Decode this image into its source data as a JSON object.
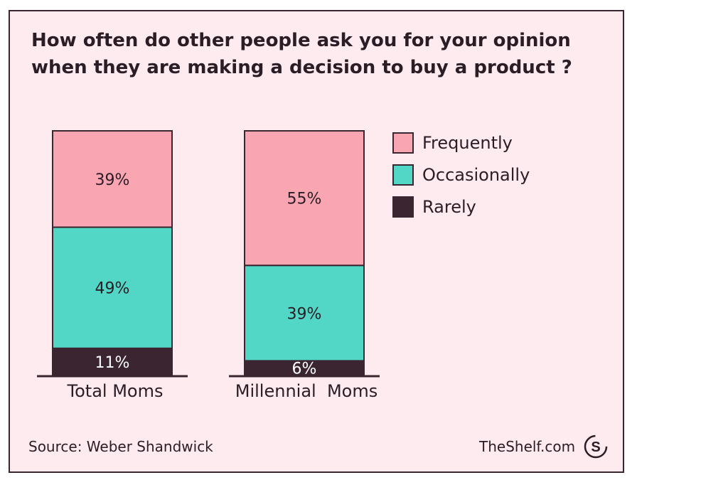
{
  "title": "How often do other people ask you for your opinion when they are making a decision to buy a product ?",
  "source": "Source: Weber Shandwick",
  "brand": "TheShelf.com",
  "brand_logo_icon": "theshelf-s-logo-icon",
  "colors": {
    "card_bg": "#fdebf0",
    "outline": "#3a2530",
    "text": "#2b1d26",
    "Frequently": "#f9a6b2",
    "Occasionally": "#52d6c5",
    "Rarely": "#3a2530"
  },
  "chart_data": {
    "type": "bar",
    "stacked": true,
    "normalized": true,
    "title": "How often do other people ask you for your opinion when they are making a decision to buy a product ?",
    "categories": [
      "Total Moms",
      "Millennial  Moms"
    ],
    "series": [
      {
        "name": "Rarely",
        "values": [
          11,
          6
        ],
        "labels": [
          "11%",
          "6%"
        ]
      },
      {
        "name": "Occasionally",
        "values": [
          49,
          39
        ],
        "labels": [
          "49%",
          "39%"
        ]
      },
      {
        "name": "Frequently",
        "values": [
          39,
          55
        ],
        "labels": [
          "39%",
          "55%"
        ]
      }
    ],
    "legend": {
      "position": "top-right",
      "order": [
        "Frequently",
        "Occasionally",
        "Rarely"
      ]
    },
    "ylim": [
      0,
      100
    ],
    "grid": false
  }
}
